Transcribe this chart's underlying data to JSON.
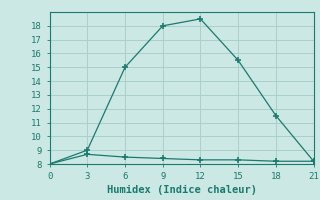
{
  "line1_x": [
    0,
    3,
    6,
    9,
    12,
    15,
    18,
    21
  ],
  "line1_y": [
    8,
    9.0,
    15.0,
    18.0,
    18.5,
    15.5,
    11.5,
    8.2
  ],
  "line2_x": [
    0,
    3,
    6,
    9,
    12,
    15,
    18,
    21
  ],
  "line2_y": [
    8,
    8.7,
    8.5,
    8.4,
    8.3,
    8.3,
    8.2,
    8.2
  ],
  "line_color": "#1a7a6e",
  "bg_color": "#cce8e4",
  "grid_color": "#aacfca",
  "xlabel": "Humidex (Indice chaleur)",
  "xlim": [
    0,
    21
  ],
  "ylim": [
    8,
    19
  ],
  "xticks": [
    0,
    3,
    6,
    9,
    12,
    15,
    18,
    21
  ],
  "yticks": [
    8,
    9,
    10,
    11,
    12,
    13,
    14,
    15,
    16,
    17,
    18
  ],
  "marker": "+"
}
